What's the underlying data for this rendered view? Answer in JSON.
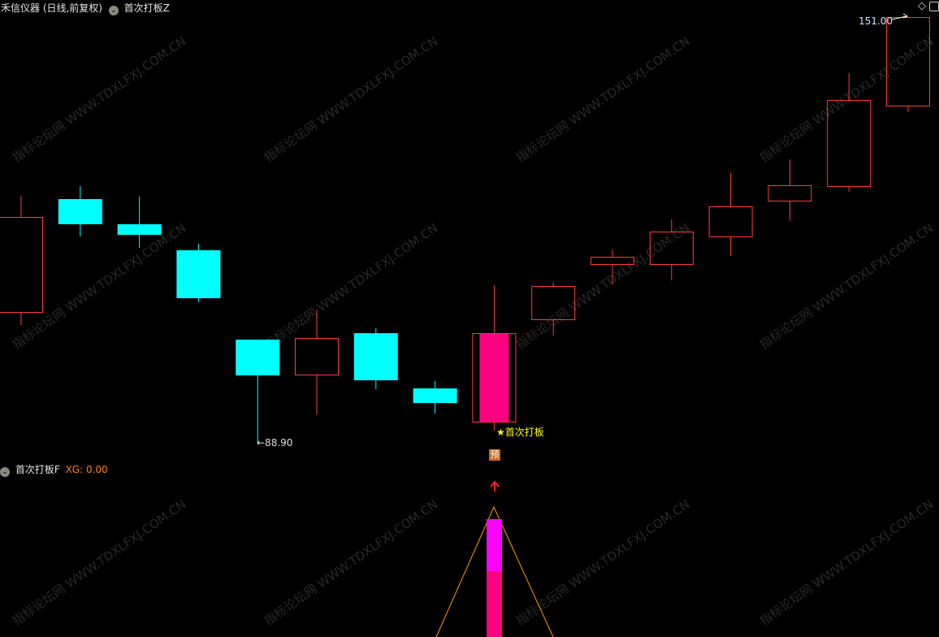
{
  "header": {
    "title": "禾信仪器 (日线,前复权)",
    "indicator_main": "首次打板Z",
    "indicator_sub": "首次打板F",
    "sub_value": "XG: 0.00"
  },
  "watermark": "指标论坛网 WWW.TDXLFXJ.COM.CN",
  "annotations": {
    "high_label": "151.00",
    "low_label": "←88.90",
    "signal_label": "★首次打板",
    "badge": "预"
  },
  "colors": {
    "up": "#ff3c3c",
    "down": "#00ffff",
    "signal_fill": "#ff0080",
    "signal_text": "#ffff00",
    "sub_bar_top": "#ff00ff",
    "sub_bar_bottom": "#ff0080",
    "sub_line": "#ff9900",
    "xg_text": "#ff7f00"
  },
  "chart_data": {
    "type": "candlestick",
    "ylim": [
      88.9,
      151.0
    ],
    "signal_index": 8,
    "candles": [
      {
        "open": 108.06,
        "close": 121.9,
        "high": 124.98,
        "low": 106.17
      },
      {
        "open": 124.5,
        "close": 120.84,
        "high": 126.4,
        "low": 119.06
      },
      {
        "open": 120.84,
        "close": 119.3,
        "high": 124.86,
        "low": 117.41
      },
      {
        "open": 117.05,
        "close": 110.07,
        "high": 118.0,
        "low": 109.48
      },
      {
        "open": 104.04,
        "close": 98.83,
        "high": 104.04,
        "low": 88.9
      },
      {
        "open": 98.95,
        "close": 104.28,
        "high": 108.42,
        "low": 93.16
      },
      {
        "open": 104.98,
        "close": 98.12,
        "high": 105.69,
        "low": 96.82
      },
      {
        "open": 96.94,
        "close": 94.81,
        "high": 98.01,
        "low": 93.27
      },
      {
        "open": 92.09,
        "close": 104.98,
        "high": 111.96,
        "low": 90.79
      },
      {
        "open": 107.0,
        "close": 111.85,
        "high": 112.32,
        "low": 104.63
      },
      {
        "open": 115.04,
        "close": 116.1,
        "high": 117.17,
        "low": 112.2
      },
      {
        "open": 115.04,
        "close": 119.77,
        "high": 121.55,
        "low": 112.67
      },
      {
        "open": 119.06,
        "close": 123.44,
        "high": 128.29,
        "low": 116.22
      },
      {
        "open": 124.27,
        "close": 126.51,
        "high": 130.3,
        "low": 121.31
      },
      {
        "open": 126.4,
        "close": 138.93,
        "high": 142.84,
        "low": 125.57
      },
      {
        "open": 138.11,
        "close": 151.0,
        "high": 151.0,
        "low": 137.16
      }
    ]
  }
}
